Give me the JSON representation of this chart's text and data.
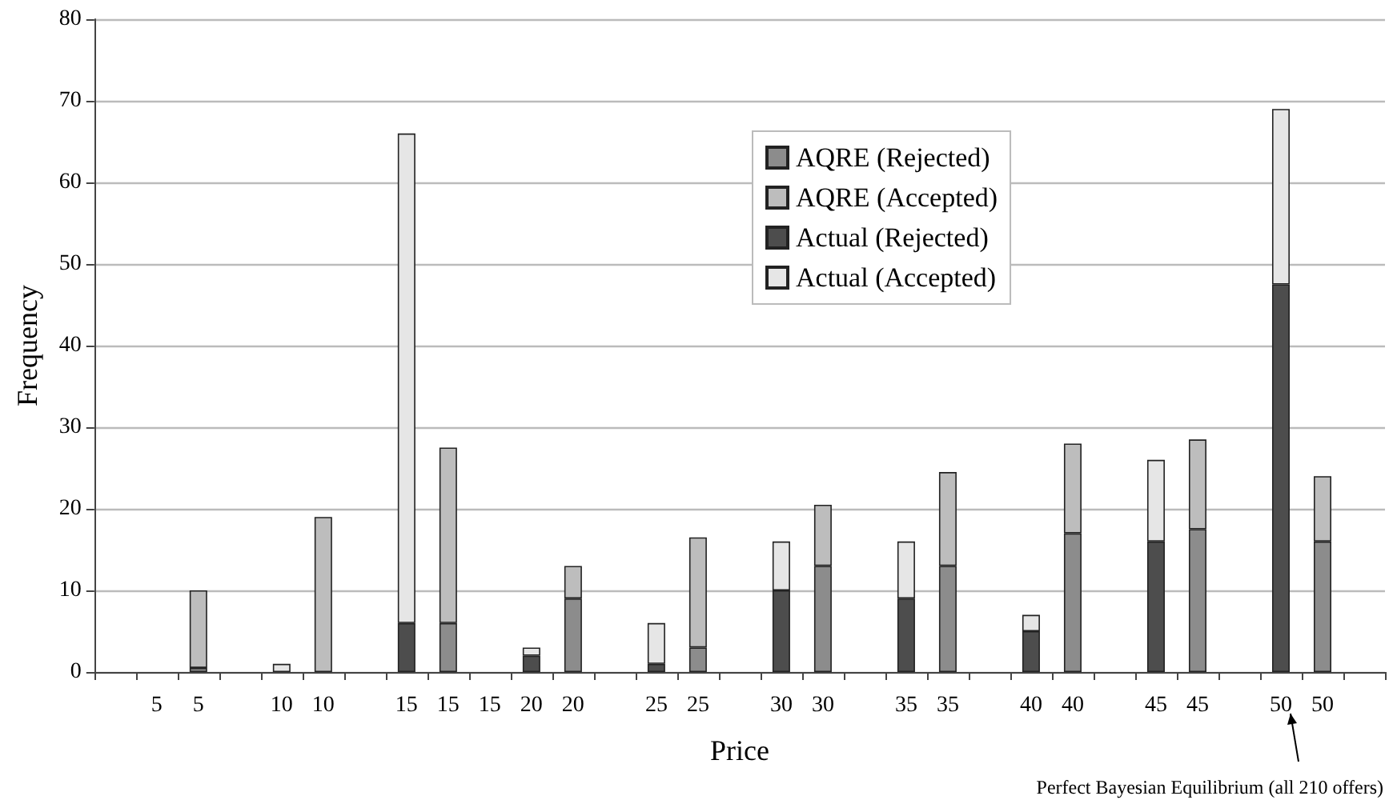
{
  "chart_data": {
    "type": "bar",
    "xlabel": "Price",
    "ylabel": "Frequency",
    "categories": [
      null,
      "5",
      "5",
      null,
      "10",
      "10",
      null,
      "15",
      "15",
      "15",
      "20",
      "20",
      null,
      "25",
      "25",
      null,
      "30",
      "30",
      null,
      "35",
      "35",
      null,
      "40",
      "40",
      null,
      "45",
      "45",
      null,
      "50",
      "50",
      null
    ],
    "stacked": true,
    "series": [
      {
        "name": "AQRE (Rejected)",
        "color": "#8c8c8c",
        "values": [
          null,
          null,
          0.5,
          null,
          null,
          null,
          null,
          null,
          6,
          null,
          null,
          9,
          null,
          null,
          3,
          null,
          null,
          13,
          null,
          null,
          13,
          null,
          null,
          17,
          null,
          null,
          17.5,
          null,
          null,
          16,
          null
        ]
      },
      {
        "name": "AQRE (Accepted)",
        "color": "#bdbdbd",
        "values": [
          null,
          null,
          9.5,
          null,
          null,
          19,
          null,
          null,
          21.5,
          null,
          null,
          4,
          null,
          null,
          13.5,
          null,
          null,
          7.5,
          null,
          null,
          11.5,
          null,
          null,
          11,
          null,
          null,
          11,
          null,
          null,
          8,
          null
        ]
      },
      {
        "name": "Actual (Rejected)",
        "color": "#4d4d4d",
        "values": [
          null,
          null,
          null,
          null,
          null,
          null,
          null,
          6,
          null,
          null,
          2,
          null,
          null,
          1,
          null,
          null,
          10,
          null,
          null,
          9,
          null,
          null,
          5,
          null,
          null,
          16,
          null,
          null,
          47.5,
          null,
          null
        ]
      },
      {
        "name": "Actual (Accepted)",
        "color": "#e6e6e6",
        "values": [
          null,
          null,
          null,
          null,
          1,
          null,
          null,
          60,
          null,
          null,
          1,
          null,
          null,
          5,
          null,
          null,
          6,
          null,
          null,
          7,
          null,
          null,
          2,
          null,
          null,
          10,
          null,
          null,
          21.5,
          null,
          null
        ]
      }
    ],
    "ylim": [
      0,
      80
    ],
    "yticks": [
      0,
      10,
      20,
      30,
      40,
      50,
      60,
      70,
      80
    ],
    "grid": "y",
    "legend": "top right",
    "annotations": [
      "Perfect Bayesian Equilibrium (all 210 offers)"
    ]
  }
}
